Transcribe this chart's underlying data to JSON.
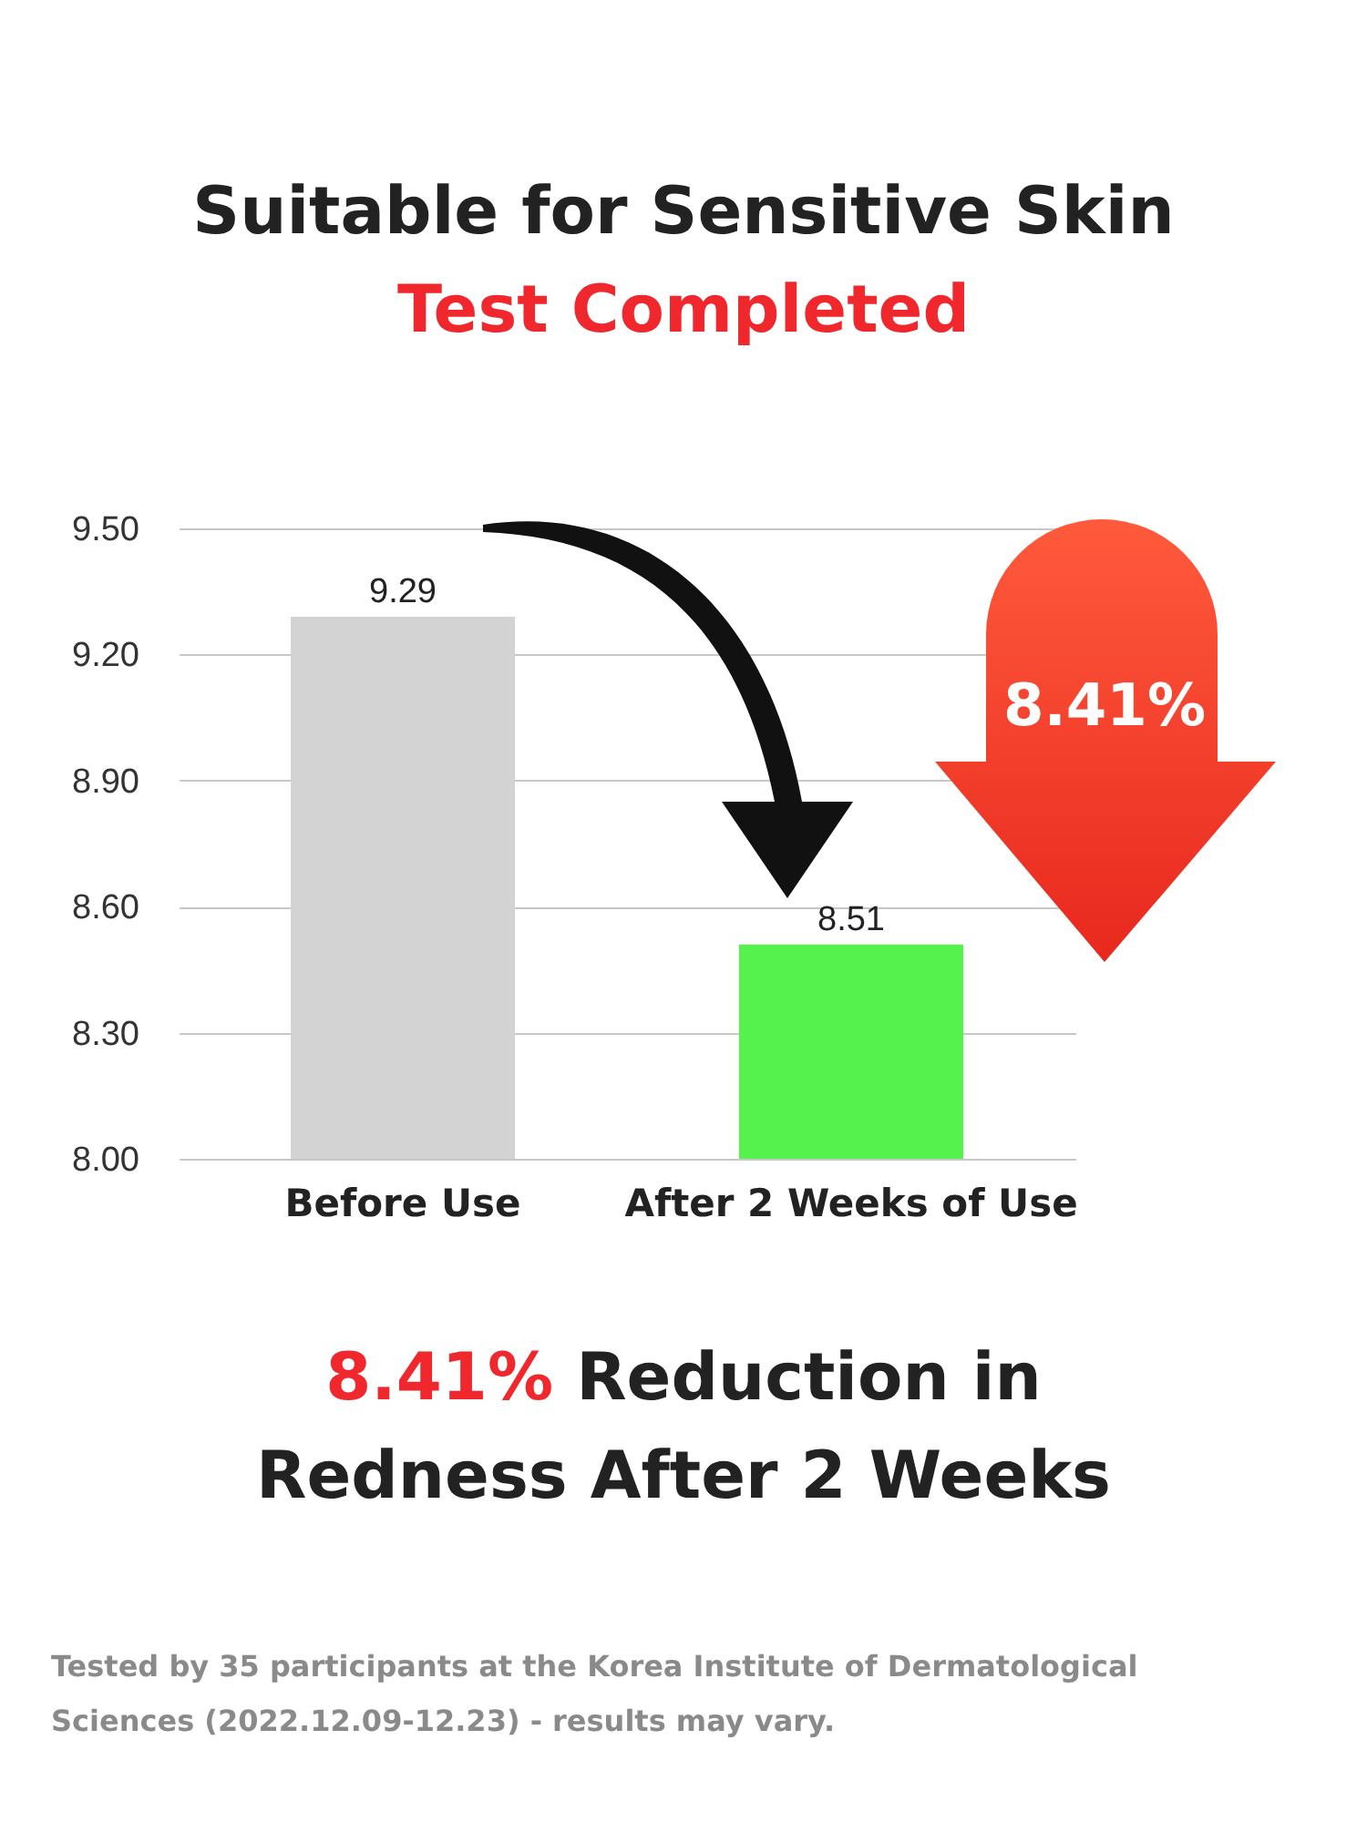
{
  "chart_data": {
    "type": "bar",
    "title": "Suitable for Sensitive Skin",
    "subtitle": "Test Completed",
    "categories": [
      "Before Use",
      "After 2 Weeks of Use"
    ],
    "values": [
      9.29,
      8.51
    ],
    "colors": [
      "#d3d3d3",
      "#55f24d"
    ],
    "ylim": [
      8,
      9.5
    ],
    "yticks": [
      {
        "value": 8,
        "label": "8.00"
      },
      {
        "value": 8.3,
        "label": "8.30"
      },
      {
        "value": 8.6,
        "label": "8.60"
      },
      {
        "value": 8.9,
        "label": "8.90"
      },
      {
        "value": 9.2,
        "label": "9.20"
      },
      {
        "value": 9.5,
        "label": "9.50"
      }
    ],
    "grid": true,
    "data_labels": true,
    "annotations": [
      "8.41%",
      "8.41% Reduction in Redness After 2 Weeks",
      "Tested by 35 participants at the Korea Institute of Dermatological Sciences (2022.12.09-12.23) - results may vary."
    ]
  }
}
